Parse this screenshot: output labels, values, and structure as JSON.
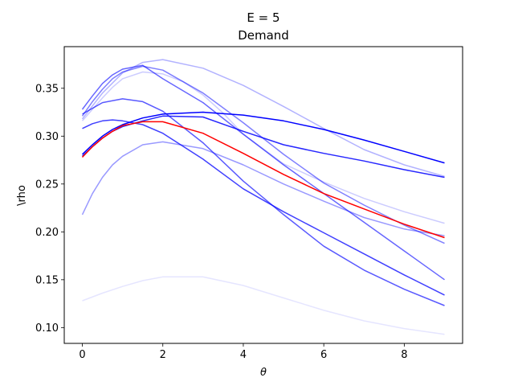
{
  "chart_data": {
    "type": "line",
    "title_line1": "E = 5",
    "title_line2": "Demand",
    "xlabel": "θ",
    "ylabel": "\\rho",
    "xlim": [
      -0.45,
      9.45
    ],
    "ylim": [
      0.0835,
      0.3935
    ],
    "xticks": [
      0,
      2,
      4,
      6,
      8
    ],
    "yticks": [
      0.1,
      0.15,
      0.2,
      0.25,
      0.3,
      0.35
    ],
    "ytick_labels": [
      "0.10",
      "0.15",
      "0.20",
      "0.25",
      "0.30",
      "0.35"
    ],
    "series": [
      {
        "name": "s1",
        "color": "#0000ff",
        "opacity": 0.1,
        "x": [
          0,
          0.5,
          1,
          1.5,
          2,
          3,
          4,
          5,
          6,
          7,
          8,
          9
        ],
        "y": [
          0.128,
          0.136,
          0.143,
          0.149,
          0.153,
          0.153,
          0.144,
          0.131,
          0.118,
          0.107,
          0.099,
          0.093
        ]
      },
      {
        "name": "s2",
        "color": "#0000ff",
        "opacity": 0.2,
        "x": [
          0,
          0.25,
          0.5,
          0.75,
          1,
          1.5,
          2,
          2.5,
          3,
          3.5,
          4,
          5,
          6,
          7,
          8,
          9
        ],
        "y": [
          0.316,
          0.328,
          0.34,
          0.351,
          0.36,
          0.367,
          0.365,
          0.357,
          0.343,
          0.324,
          0.302,
          0.271,
          0.252,
          0.235,
          0.221,
          0.209
        ]
      },
      {
        "name": "s3",
        "color": "#0000ff",
        "opacity": 0.3,
        "x": [
          0,
          0.5,
          1,
          1.5,
          2,
          3,
          4,
          5,
          6,
          7,
          8,
          9
        ],
        "y": [
          0.318,
          0.345,
          0.366,
          0.377,
          0.38,
          0.371,
          0.353,
          0.331,
          0.308,
          0.286,
          0.27,
          0.258
        ]
      },
      {
        "name": "s4",
        "color": "#0000ff",
        "opacity": 0.4,
        "x": [
          0,
          0.25,
          0.5,
          0.75,
          1,
          1.5,
          2,
          3,
          4,
          5,
          6,
          7,
          8,
          9
        ],
        "y": [
          0.218,
          0.24,
          0.257,
          0.27,
          0.279,
          0.291,
          0.294,
          0.287,
          0.27,
          0.25,
          0.232,
          0.215,
          0.203,
          0.196
        ]
      },
      {
        "name": "s5",
        "color": "#0000ff",
        "opacity": 0.5,
        "x": [
          0,
          0.25,
          0.5,
          0.75,
          1,
          1.5,
          2,
          3,
          4,
          5,
          6,
          7,
          8,
          9
        ],
        "y": [
          0.321,
          0.336,
          0.349,
          0.36,
          0.367,
          0.373,
          0.369,
          0.345,
          0.314,
          0.281,
          0.251,
          0.228,
          0.207,
          0.188
        ]
      },
      {
        "name": "s6",
        "color": "#0000ff",
        "opacity": 0.6,
        "x": [
          0,
          0.25,
          0.5,
          0.75,
          1,
          1.5,
          2,
          3,
          4,
          5,
          6,
          7,
          8,
          9
        ],
        "y": [
          0.328,
          0.342,
          0.355,
          0.364,
          0.37,
          0.374,
          0.36,
          0.335,
          0.302,
          0.27,
          0.24,
          0.21,
          0.18,
          0.15
        ]
      },
      {
        "name": "s7",
        "color": "#0000ff",
        "opacity": 0.65,
        "x": [
          0,
          0.5,
          1,
          1.5,
          2,
          3,
          4,
          5,
          6,
          7,
          8,
          9
        ],
        "y": [
          0.323,
          0.335,
          0.339,
          0.336,
          0.326,
          0.293,
          0.253,
          0.218,
          0.185,
          0.16,
          0.14,
          0.123
        ]
      },
      {
        "name": "s8",
        "color": "#0000ff",
        "opacity": 0.75,
        "x": [
          0,
          0.25,
          0.5,
          0.75,
          1,
          1.5,
          2,
          3,
          4,
          5,
          6,
          7,
          8,
          9
        ],
        "y": [
          0.308,
          0.313,
          0.316,
          0.317,
          0.316,
          0.312,
          0.303,
          0.276,
          0.245,
          0.221,
          0.199,
          0.177,
          0.155,
          0.134
        ]
      },
      {
        "name": "s9",
        "color": "#0000ff",
        "opacity": 0.85,
        "x": [
          0,
          0.25,
          0.5,
          0.75,
          1,
          1.5,
          2,
          3,
          4,
          5,
          6,
          7,
          8,
          9
        ],
        "y": [
          0.279,
          0.289,
          0.298,
          0.305,
          0.31,
          0.316,
          0.321,
          0.32,
          0.305,
          0.291,
          0.282,
          0.274,
          0.265,
          0.257
        ]
      },
      {
        "name": "s10",
        "color": "#0000ff",
        "opacity": 1.0,
        "x": [
          0,
          0.25,
          0.5,
          0.75,
          1,
          1.5,
          2,
          3,
          4,
          5,
          6,
          7,
          8,
          9
        ],
        "y": [
          0.281,
          0.291,
          0.3,
          0.307,
          0.312,
          0.319,
          0.323,
          0.325,
          0.322,
          0.316,
          0.307,
          0.296,
          0.284,
          0.272
        ]
      },
      {
        "name": "red",
        "color": "#ff0000",
        "opacity": 1.0,
        "x": [
          0,
          0.25,
          0.5,
          0.75,
          1,
          1.5,
          2,
          3,
          4,
          5,
          6,
          7,
          8,
          9
        ],
        "y": [
          0.278,
          0.289,
          0.298,
          0.305,
          0.311,
          0.315,
          0.315,
          0.303,
          0.282,
          0.26,
          0.24,
          0.224,
          0.208,
          0.194
        ]
      }
    ]
  }
}
